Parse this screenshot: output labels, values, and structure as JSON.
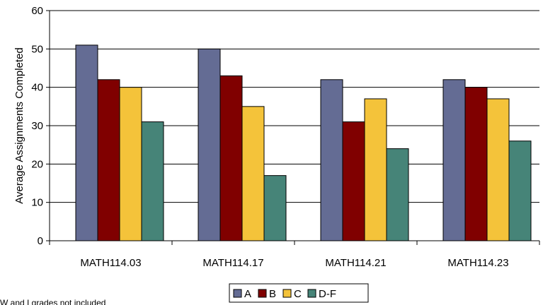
{
  "chart_data": {
    "type": "bar",
    "title": "",
    "xlabel": "",
    "ylabel": "Average Assignments Completed",
    "ylim": [
      0,
      60
    ],
    "yticks": [
      0,
      10,
      20,
      30,
      40,
      50,
      60
    ],
    "grid": "horizontal",
    "legend_position": "bottom-center",
    "categories": [
      "MATH114.03",
      "MATH114.17",
      "MATH114.21",
      "MATH114.23"
    ],
    "series": [
      {
        "name": "A",
        "color": "#646C94",
        "values": [
          51,
          50,
          42,
          42
        ]
      },
      {
        "name": "B",
        "color": "#800000",
        "values": [
          42,
          43,
          31,
          40
        ]
      },
      {
        "name": "C",
        "color": "#F4C33A",
        "values": [
          40,
          35,
          37,
          37
        ]
      },
      {
        "name": "D-F",
        "color": "#468478",
        "values": [
          31,
          17,
          24,
          26
        ]
      }
    ],
    "footnote": "W and I grades not included"
  }
}
